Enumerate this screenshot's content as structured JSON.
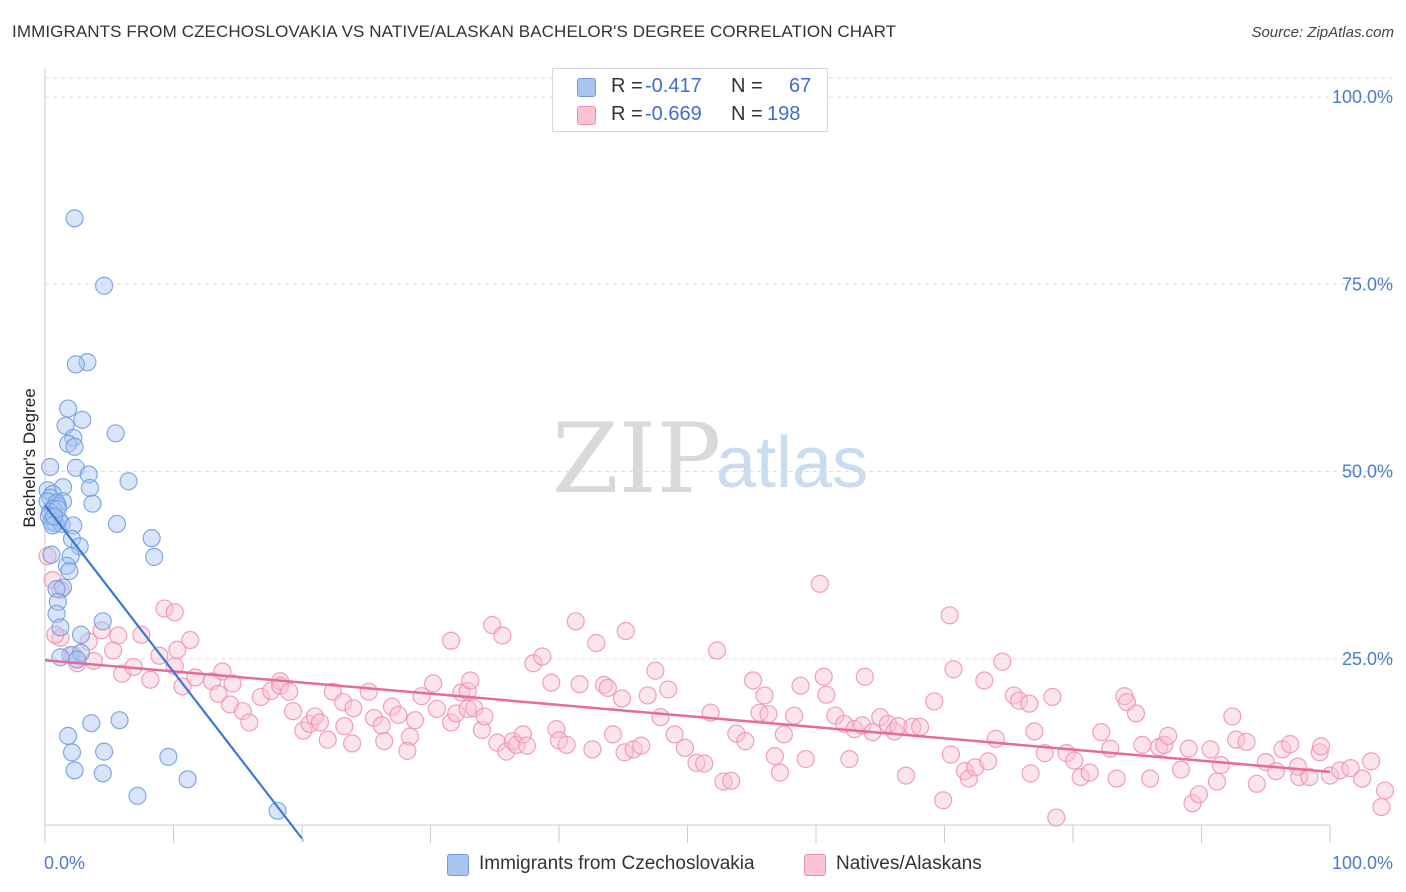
{
  "header": {
    "title": "IMMIGRANTS FROM CZECHOSLOVAKIA VS NATIVE/ALASKAN BACHELOR'S DEGREE CORRELATION CHART",
    "source": "Source: ZipAtlas.com"
  },
  "watermark": {
    "zip": "ZIP",
    "atlas": "atlas"
  },
  "legend": {
    "rows": [
      {
        "r_label": "R =",
        "r_value": "-0.417",
        "n_label": "N =",
        "n_value": "67",
        "color": "#7fa8e8"
      },
      {
        "r_label": "R =",
        "r_value": "-0.669",
        "n_label": "N =",
        "n_value": "198",
        "color": "#f29cb8"
      }
    ]
  },
  "bottom_legend": {
    "items": [
      {
        "label": "Immigrants from Czechoslovakia",
        "color": "#7fa8e8"
      },
      {
        "label": "Natives/Alaskans",
        "color": "#f29cb8"
      }
    ]
  },
  "chart_data": {
    "type": "scatter",
    "title": "IMMIGRANTS FROM CZECHOSLOVAKIA VS NATIVE/ALASKAN BACHELOR'S DEGREE CORRELATION CHART",
    "xlabel": "",
    "ylabel": "Bachelor's Degree",
    "xlim": [
      0,
      100
    ],
    "ylim": [
      0,
      100
    ],
    "x_tick_labels": [
      "0.0%",
      "100.0%"
    ],
    "y_ticks": [
      25,
      50,
      75,
      100
    ],
    "y_tick_labels": [
      "25.0%",
      "50.0%",
      "75.0%",
      "100.0%"
    ],
    "grid": true,
    "colors": {
      "blue_fill": "#a9c6f0",
      "blue_stroke": "#6f9be0",
      "blue_line": "#3a78d6",
      "pink_fill": "#f8c3d4",
      "pink_stroke": "#ef8fb0",
      "pink_line": "#e96a95"
    },
    "series": [
      {
        "name": "Immigrants from Czechoslovakia",
        "color": "blue",
        "trend": [
          [
            0,
            45.5
          ],
          [
            20,
            1.0
          ]
        ],
        "points": [
          [
            2.3,
            83.8
          ],
          [
            4.6,
            74.8
          ],
          [
            3.3,
            64.6
          ],
          [
            2.4,
            64.3
          ],
          [
            1.8,
            58.4
          ],
          [
            2.9,
            56.9
          ],
          [
            1.6,
            56.1
          ],
          [
            5.5,
            55.1
          ],
          [
            2.2,
            54.5
          ],
          [
            1.8,
            53.7
          ],
          [
            2.3,
            53.3
          ],
          [
            0.4,
            50.6
          ],
          [
            2.4,
            50.5
          ],
          [
            3.4,
            49.6
          ],
          [
            6.5,
            48.7
          ],
          [
            1.4,
            47.9
          ],
          [
            3.5,
            47.8
          ],
          [
            0.2,
            47.5
          ],
          [
            0.6,
            47.0
          ],
          [
            0.4,
            46.5
          ],
          [
            0.2,
            46.0
          ],
          [
            1.4,
            46.0
          ],
          [
            0.9,
            45.8
          ],
          [
            3.7,
            45.7
          ],
          [
            1.0,
            45.4
          ],
          [
            0.6,
            45.0
          ],
          [
            0.4,
            44.6
          ],
          [
            0.3,
            44.0
          ],
          [
            1.1,
            43.5
          ],
          [
            0.5,
            43.3
          ],
          [
            0.8,
            43.1
          ],
          [
            1.3,
            43.0
          ],
          [
            0.6,
            42.8
          ],
          [
            5.6,
            43.0
          ],
          [
            2.2,
            42.8
          ],
          [
            2.1,
            41.0
          ],
          [
            8.3,
            41.1
          ],
          [
            2.7,
            40.0
          ],
          [
            0.5,
            38.9
          ],
          [
            8.5,
            38.6
          ],
          [
            2.0,
            38.7
          ],
          [
            1.7,
            37.4
          ],
          [
            1.9,
            36.7
          ],
          [
            1.4,
            34.5
          ],
          [
            0.9,
            34.3
          ],
          [
            1.0,
            32.6
          ],
          [
            0.9,
            31.0
          ],
          [
            4.5,
            30.0
          ],
          [
            1.2,
            29.2
          ],
          [
            2.8,
            28.2
          ],
          [
            2.0,
            25.5
          ],
          [
            2.8,
            25.8
          ],
          [
            1.2,
            25.2
          ],
          [
            2.5,
            24.9
          ],
          [
            5.8,
            16.8
          ],
          [
            3.6,
            16.4
          ],
          [
            1.8,
            14.7
          ],
          [
            9.6,
            11.9
          ],
          [
            2.1,
            12.5
          ],
          [
            4.6,
            12.6
          ],
          [
            2.3,
            10.1
          ],
          [
            4.5,
            9.7
          ],
          [
            11.1,
            8.9
          ],
          [
            7.2,
            6.7
          ],
          [
            18.1,
            4.7
          ],
          [
            1.0,
            45.0
          ],
          [
            0.7,
            44.0
          ]
        ]
      },
      {
        "name": "Natives/Alaskans",
        "color": "pink",
        "trend": [
          [
            0,
            24.8
          ],
          [
            100,
            9.9
          ]
        ],
        "points": [
          [
            0.2,
            38.7
          ],
          [
            0.6,
            35.5
          ],
          [
            1.2,
            34.2
          ],
          [
            1.2,
            27.8
          ],
          [
            0.8,
            28.2
          ],
          [
            2.5,
            24.4
          ],
          [
            3.4,
            27.3
          ],
          [
            4.4,
            28.8
          ],
          [
            5.7,
            28.1
          ],
          [
            7.5,
            28.2
          ],
          [
            9.3,
            31.7
          ],
          [
            10.1,
            31.2
          ],
          [
            2.2,
            25.5
          ],
          [
            3.8,
            24.7
          ],
          [
            5.3,
            26.1
          ],
          [
            6.0,
            23.0
          ],
          [
            6.9,
            23.9
          ],
          [
            8.2,
            22.2
          ],
          [
            8.9,
            25.4
          ],
          [
            10.1,
            24.0
          ],
          [
            10.3,
            26.2
          ],
          [
            11.3,
            27.5
          ],
          [
            10.7,
            21.3
          ],
          [
            11.7,
            22.5
          ],
          [
            13.0,
            22.0
          ],
          [
            13.8,
            23.3
          ],
          [
            14.6,
            21.7
          ],
          [
            13.5,
            20.3
          ],
          [
            14.4,
            18.9
          ],
          [
            15.4,
            18.0
          ],
          [
            15.9,
            16.5
          ],
          [
            16.8,
            19.9
          ],
          [
            17.6,
            20.7
          ],
          [
            18.3,
            22.0
          ],
          [
            18.3,
            21.4
          ],
          [
            19.0,
            20.6
          ],
          [
            19.3,
            18.0
          ],
          [
            20.1,
            15.4
          ],
          [
            20.6,
            16.3
          ],
          [
            21.0,
            17.3
          ],
          [
            21.4,
            16.5
          ],
          [
            22.0,
            14.2
          ],
          [
            22.4,
            20.6
          ],
          [
            23.2,
            19.2
          ],
          [
            23.3,
            16.0
          ],
          [
            23.9,
            13.7
          ],
          [
            24.0,
            18.4
          ],
          [
            25.2,
            20.6
          ],
          [
            25.6,
            17.1
          ],
          [
            26.2,
            16.1
          ],
          [
            26.4,
            14.0
          ],
          [
            27.0,
            18.6
          ],
          [
            27.5,
            17.5
          ],
          [
            28.4,
            14.6
          ],
          [
            28.2,
            12.7
          ],
          [
            28.8,
            16.8
          ],
          [
            29.3,
            20.0
          ],
          [
            30.2,
            21.7
          ],
          [
            30.5,
            18.3
          ],
          [
            31.6,
            27.4
          ],
          [
            31.6,
            16.5
          ],
          [
            32.0,
            17.7
          ],
          [
            32.4,
            20.5
          ],
          [
            32.9,
            20.7
          ],
          [
            33.1,
            22.1
          ],
          [
            32.9,
            18.3
          ],
          [
            33.4,
            18.4
          ],
          [
            34.0,
            15.5
          ],
          [
            34.2,
            17.3
          ],
          [
            34.8,
            29.5
          ],
          [
            35.2,
            13.8
          ],
          [
            35.6,
            28.1
          ],
          [
            35.9,
            12.6
          ],
          [
            36.4,
            14.0
          ],
          [
            36.7,
            13.5
          ],
          [
            37.2,
            14.9
          ],
          [
            37.5,
            13.4
          ],
          [
            38.0,
            24.4
          ],
          [
            38.7,
            25.3
          ],
          [
            39.4,
            21.8
          ],
          [
            39.8,
            15.6
          ],
          [
            40.0,
            14.1
          ],
          [
            40.6,
            13.5
          ],
          [
            41.3,
            30.0
          ],
          [
            41.6,
            21.6
          ],
          [
            42.6,
            12.9
          ],
          [
            42.9,
            27.1
          ],
          [
            43.5,
            21.5
          ],
          [
            43.8,
            21.1
          ],
          [
            44.2,
            14.9
          ],
          [
            44.9,
            19.7
          ],
          [
            45.2,
            28.7
          ],
          [
            45.1,
            12.5
          ],
          [
            45.8,
            12.9
          ],
          [
            46.4,
            13.4
          ],
          [
            46.9,
            20.1
          ],
          [
            47.5,
            23.4
          ],
          [
            47.9,
            17.2
          ],
          [
            48.5,
            20.9
          ],
          [
            49.0,
            14.9
          ],
          [
            49.8,
            13.1
          ],
          [
            50.7,
            11.1
          ],
          [
            51.3,
            11.0
          ],
          [
            51.8,
            17.8
          ],
          [
            52.3,
            26.1
          ],
          [
            52.8,
            8.6
          ],
          [
            53.4,
            8.7
          ],
          [
            53.8,
            15.0
          ],
          [
            54.5,
            14.0
          ],
          [
            55.1,
            22.1
          ],
          [
            55.6,
            17.8
          ],
          [
            56.0,
            20.1
          ],
          [
            56.3,
            17.6
          ],
          [
            56.8,
            12.0
          ],
          [
            57.2,
            9.8
          ],
          [
            57.5,
            14.9
          ],
          [
            58.3,
            17.4
          ],
          [
            58.8,
            21.4
          ],
          [
            59.2,
            11.6
          ],
          [
            60.3,
            35.0
          ],
          [
            60.6,
            22.6
          ],
          [
            60.8,
            20.2
          ],
          [
            61.5,
            17.4
          ],
          [
            62.2,
            16.3
          ],
          [
            62.6,
            11.6
          ],
          [
            63.0,
            15.6
          ],
          [
            63.6,
            16.1
          ],
          [
            63.8,
            22.6
          ],
          [
            64.4,
            15.2
          ],
          [
            65.0,
            17.2
          ],
          [
            65.6,
            16.3
          ],
          [
            66.1,
            15.3
          ],
          [
            66.4,
            16.0
          ],
          [
            67.0,
            9.4
          ],
          [
            67.5,
            15.9
          ],
          [
            68.1,
            15.9
          ],
          [
            69.2,
            19.3
          ],
          [
            69.9,
            6.1
          ],
          [
            70.4,
            30.8
          ],
          [
            70.7,
            23.6
          ],
          [
            70.5,
            12.2
          ],
          [
            71.6,
            10.0
          ],
          [
            71.9,
            9.0
          ],
          [
            72.4,
            10.5
          ],
          [
            73.1,
            22.1
          ],
          [
            73.4,
            11.3
          ],
          [
            74.0,
            14.3
          ],
          [
            74.5,
            24.6
          ],
          [
            75.4,
            20.1
          ],
          [
            75.8,
            19.4
          ],
          [
            76.6,
            19.0
          ],
          [
            76.7,
            9.7
          ],
          [
            77.0,
            15.3
          ],
          [
            77.8,
            12.4
          ],
          [
            78.4,
            19.9
          ],
          [
            78.7,
            3.8
          ],
          [
            79.5,
            12.4
          ],
          [
            80.1,
            11.4
          ],
          [
            80.6,
            9.2
          ],
          [
            81.3,
            9.8
          ],
          [
            82.2,
            15.2
          ],
          [
            82.9,
            13.0
          ],
          [
            83.4,
            9.0
          ],
          [
            84.0,
            20.0
          ],
          [
            84.2,
            19.2
          ],
          [
            84.9,
            17.7
          ],
          [
            85.4,
            13.5
          ],
          [
            86.0,
            9.0
          ],
          [
            86.7,
            13.2
          ],
          [
            87.1,
            13.5
          ],
          [
            87.4,
            14.7
          ],
          [
            88.4,
            10.2
          ],
          [
            89.0,
            13.0
          ],
          [
            89.3,
            5.7
          ],
          [
            89.8,
            6.9
          ],
          [
            90.7,
            12.9
          ],
          [
            91.2,
            8.6
          ],
          [
            91.5,
            10.8
          ],
          [
            92.4,
            17.3
          ],
          [
            92.7,
            14.2
          ],
          [
            93.5,
            13.9
          ],
          [
            94.3,
            8.3
          ],
          [
            95.0,
            11.2
          ],
          [
            95.8,
            10.0
          ],
          [
            96.3,
            12.9
          ],
          [
            96.9,
            13.6
          ],
          [
            97.6,
            9.2
          ],
          [
            97.5,
            10.6
          ],
          [
            98.4,
            9.2
          ],
          [
            99.2,
            12.5
          ],
          [
            99.3,
            13.3
          ],
          [
            100.0,
            9.4
          ],
          [
            100.8,
            10.1
          ],
          [
            101.6,
            10.4
          ],
          [
            102.5,
            9.0
          ],
          [
            103.2,
            11.3
          ],
          [
            104.0,
            5.2
          ],
          [
            104.8,
            7.4
          ]
        ]
      }
    ]
  }
}
